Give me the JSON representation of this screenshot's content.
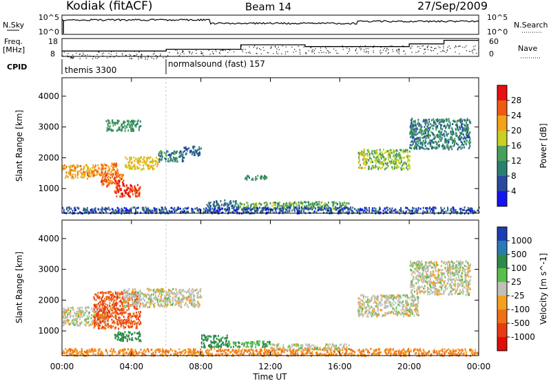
{
  "header": {
    "station": "Kodiak (fitACF)",
    "beam": "Beam 14",
    "date": "27/Sep/2009"
  },
  "noise_panel": {
    "left_label": "N.Sky",
    "right_label": "N.Search",
    "left_ticks": [
      "10^5",
      "10^0"
    ],
    "right_ticks": [
      "10^5",
      "10^0"
    ]
  },
  "freq_panel": {
    "left_label_1": "Freq.",
    "left_label_2": "[MHz]",
    "left_ticks": [
      "18",
      "8"
    ],
    "right_label": "Nave",
    "right_ticks": [
      "60",
      "0"
    ]
  },
  "cpid": {
    "label": "CPID",
    "programs": [
      "themis 3300",
      "normalsound (fast) 157"
    ]
  },
  "x_axis": {
    "label": "Time UT",
    "ticks": [
      "00:00",
      "04:00",
      "08:00",
      "12:00",
      "16:00",
      "20:00",
      "00:00"
    ]
  },
  "y_axis": {
    "label": "Slant Range [km]",
    "ticks": [
      "1000",
      "2000",
      "3000",
      "4000"
    ]
  },
  "power_scale": {
    "label": "Power [dB]",
    "ticks": [
      "28",
      "24",
      "20",
      "16",
      "12",
      "8",
      "4"
    ],
    "colors": [
      "#e81010",
      "#f05a10",
      "#f4a21a",
      "#c8d020",
      "#4aa05a",
      "#2a8070",
      "#2a4aa0",
      "#1414f0"
    ]
  },
  "velocity_scale": {
    "label": "Velocity [m s^-1]",
    "ticks": [
      "1000",
      "500",
      "100",
      "25",
      "-25",
      "-100",
      "-500",
      "-1000"
    ],
    "colors": [
      "#1e3cb4",
      "#2a7ab8",
      "#2e8a4a",
      "#58c048",
      "#c0c0b8",
      "#f4a020",
      "#f07018",
      "#e83a14",
      "#e00c0c"
    ]
  },
  "chart_data": {
    "type": "heatmap",
    "x_unit": "hours UT",
    "xlim": [
      0,
      24
    ],
    "ylim": [
      200,
      4600
    ],
    "cpid_switch_hour": 6.0,
    "power_regions": [
      {
        "t": [
          0.0,
          1.8
        ],
        "r": [
          1350,
          1800
        ],
        "power": 22
      },
      {
        "t": [
          1.8,
          3.2
        ],
        "r": [
          1450,
          1850
        ],
        "power": 24
      },
      {
        "t": [
          2.2,
          3.6
        ],
        "r": [
          1100,
          1500
        ],
        "power": 26
      },
      {
        "t": [
          3.0,
          4.5
        ],
        "r": [
          750,
          1150
        ],
        "power": 28
      },
      {
        "t": [
          3.6,
          5.5
        ],
        "r": [
          1650,
          2050
        ],
        "power": 20
      },
      {
        "t": [
          5.5,
          7.0
        ],
        "r": [
          1900,
          2250
        ],
        "power": 10
      },
      {
        "t": [
          7.0,
          8.0
        ],
        "r": [
          2100,
          2400
        ],
        "power": 8
      },
      {
        "t": [
          2.5,
          4.5
        ],
        "r": [
          2900,
          3250
        ],
        "power": 12
      },
      {
        "t": [
          8.3,
          10.0
        ],
        "r": [
          450,
          650
        ],
        "power": 8
      },
      {
        "t": [
          10.0,
          16.5
        ],
        "r": [
          350,
          600
        ],
        "power": 14
      },
      {
        "t": [
          10.5,
          11.8
        ],
        "r": [
          1300,
          1450
        ],
        "power": 12
      },
      {
        "t": [
          17.0,
          17.5
        ],
        "r": [
          1700,
          2300
        ],
        "power": 18
      },
      {
        "t": [
          17.5,
          20.0
        ],
        "r": [
          1650,
          2300
        ],
        "power": 16
      },
      {
        "t": [
          20.0,
          23.5
        ],
        "r": [
          2300,
          3300
        ],
        "power": 10
      },
      {
        "t": [
          0.0,
          24.0
        ],
        "r": [
          220,
          420
        ],
        "power": 6
      }
    ],
    "velocity_regions": [
      {
        "t": [
          0.0,
          2.5
        ],
        "r": [
          1200,
          1800
        ],
        "velocity": 0
      },
      {
        "t": [
          1.8,
          4.5
        ],
        "r": [
          1100,
          2300
        ],
        "velocity": -500
      },
      {
        "t": [
          3.0,
          4.5
        ],
        "r": [
          700,
          1000
        ],
        "velocity": 300
      },
      {
        "t": [
          3.5,
          8.0
        ],
        "r": [
          1800,
          2400
        ],
        "velocity": 0
      },
      {
        "t": [
          8.0,
          9.5
        ],
        "r": [
          500,
          900
        ],
        "velocity": 300
      },
      {
        "t": [
          9.5,
          12.0
        ],
        "r": [
          500,
          700
        ],
        "velocity": 100
      },
      {
        "t": [
          12.0,
          16.5
        ],
        "r": [
          400,
          600
        ],
        "velocity": 0
      },
      {
        "t": [
          17.0,
          20.5
        ],
        "r": [
          1500,
          2200
        ],
        "velocity": 0
      },
      {
        "t": [
          20.0,
          23.5
        ],
        "r": [
          2200,
          3300
        ],
        "velocity": 0
      },
      {
        "t": [
          0.0,
          24.0
        ],
        "r": [
          220,
          450
        ],
        "velocity": -100
      }
    ],
    "freq_mhz": [
      {
        "t": [
          0,
          6
        ],
        "f": 11.0
      },
      {
        "t": [
          6,
          10.3
        ],
        "f": 12.0
      },
      {
        "t": [
          10.3,
          14
        ],
        "f": 14.5
      },
      {
        "t": [
          14,
          20
        ],
        "f": 13.5
      },
      {
        "t": [
          20,
          22
        ],
        "f": 15.0
      },
      {
        "t": [
          22,
          24
        ],
        "f": 17.0
      }
    ]
  }
}
